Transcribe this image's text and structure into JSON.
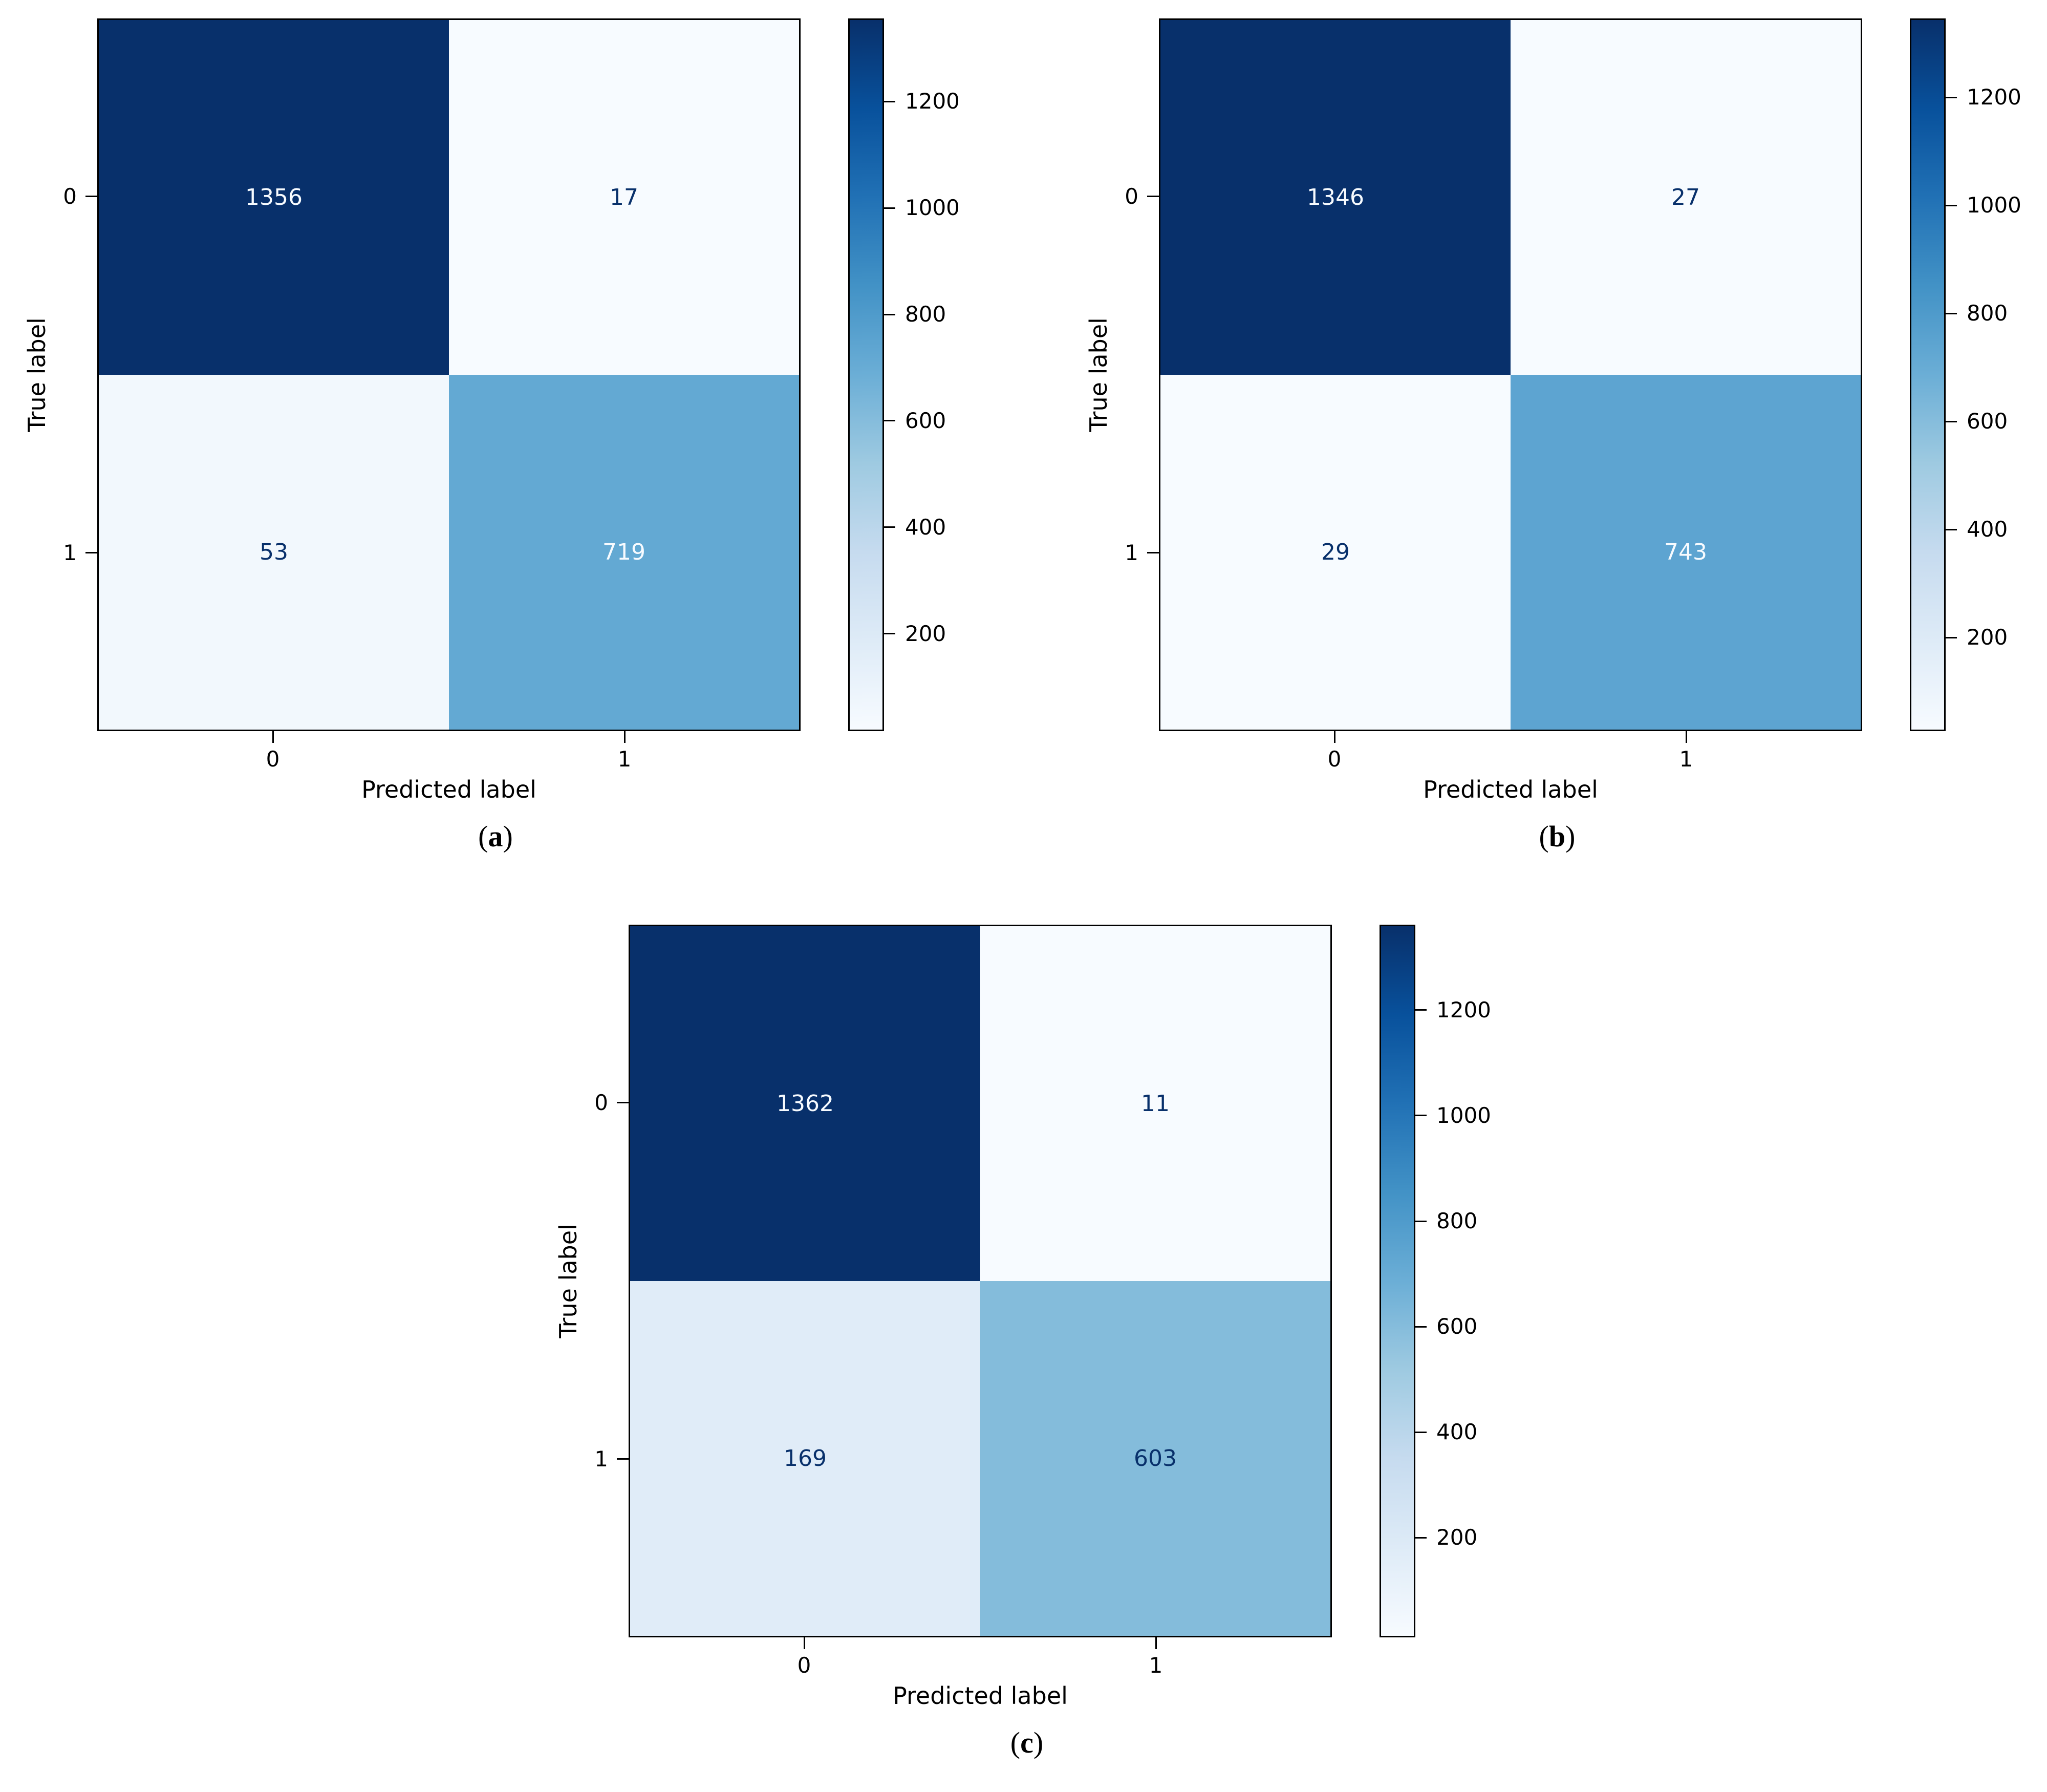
{
  "chart_data": [
    {
      "type": "heatmap",
      "caption_prefix": "(",
      "caption": "a",
      "caption_suffix": ")",
      "xlabel": "Predicted label",
      "ylabel": "True label",
      "x_tick_labels": [
        "0",
        "1"
      ],
      "y_tick_labels": [
        "0",
        "1"
      ],
      "matrix": [
        [
          1356,
          17
        ],
        [
          53,
          719
        ]
      ],
      "vmin": 17,
      "vmax": 1356,
      "colorbar_ticks": [
        200,
        400,
        600,
        800,
        1000,
        1200
      ],
      "colormap": "Blues",
      "legend_position": "right"
    },
    {
      "type": "heatmap",
      "caption_prefix": "(",
      "caption": "b",
      "caption_suffix": ")",
      "xlabel": "Predicted label",
      "ylabel": "True label",
      "x_tick_labels": [
        "0",
        "1"
      ],
      "y_tick_labels": [
        "0",
        "1"
      ],
      "matrix": [
        [
          1346,
          27
        ],
        [
          29,
          743
        ]
      ],
      "vmin": 27,
      "vmax": 1346,
      "colorbar_ticks": [
        200,
        400,
        600,
        800,
        1000,
        1200
      ],
      "colormap": "Blues",
      "legend_position": "right"
    },
    {
      "type": "heatmap",
      "caption_prefix": "(",
      "caption": "c",
      "caption_suffix": ")",
      "xlabel": "Predicted label",
      "ylabel": "True label",
      "x_tick_labels": [
        "0",
        "1"
      ],
      "y_tick_labels": [
        "0",
        "1"
      ],
      "matrix": [
        [
          1362,
          11
        ],
        [
          169,
          603
        ]
      ],
      "vmin": 11,
      "vmax": 1362,
      "colorbar_ticks": [
        200,
        400,
        600,
        800,
        1000,
        1200
      ],
      "colormap": "Blues",
      "legend_position": "right"
    }
  ],
  "figure": {
    "colormap_stops": [
      [
        0.0,
        "#f7fbff"
      ],
      [
        0.125,
        "#deebf7"
      ],
      [
        0.25,
        "#c6dbef"
      ],
      [
        0.375,
        "#9ecae1"
      ],
      [
        0.5,
        "#6baed6"
      ],
      [
        0.625,
        "#4292c6"
      ],
      [
        0.75,
        "#2171b5"
      ],
      [
        0.875,
        "#08519c"
      ],
      [
        1.0,
        "#08306b"
      ]
    ],
    "cell_text_light": "#f7fbff",
    "cell_text_dark": "#08306b",
    "spine_color": "#000000",
    "background": "#ffffff"
  }
}
